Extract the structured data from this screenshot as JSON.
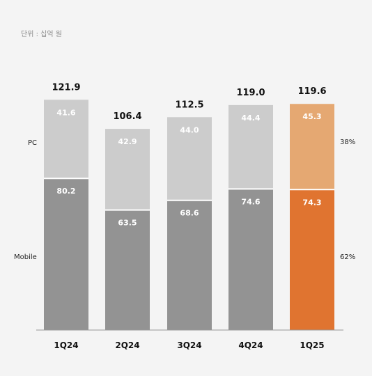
{
  "unit_label": "단위 : 십억 원",
  "chart_data": {
    "type": "bar",
    "stacked": true,
    "categories": [
      "1Q24",
      "2Q24",
      "3Q24",
      "4Q24",
      "1Q25"
    ],
    "series": [
      {
        "name": "Mobile",
        "values": [
          80.2,
          63.5,
          68.6,
          74.6,
          74.3
        ]
      },
      {
        "name": "PC",
        "values": [
          41.6,
          42.9,
          44.0,
          44.4,
          45.3
        ]
      }
    ],
    "totals": [
      "121.9",
      "106.4",
      "112.5",
      "119.0",
      "119.6"
    ],
    "mobile_labels": [
      "80.2",
      "63.5",
      "68.6",
      "74.6",
      "74.3"
    ],
    "pc_labels": [
      "41.6",
      "42.9",
      "44.0",
      "44.4",
      "45.3"
    ],
    "share_labels": {
      "pc": "38%",
      "mobile": "62%"
    },
    "highlight_index": 4,
    "colors": {
      "mobile": "#939393",
      "pc": "#cccccc",
      "mobile_highlight": "#e07430",
      "pc_highlight": "#e5a872",
      "axis": "#999999"
    },
    "ylim": [
      0,
      121.9
    ]
  }
}
